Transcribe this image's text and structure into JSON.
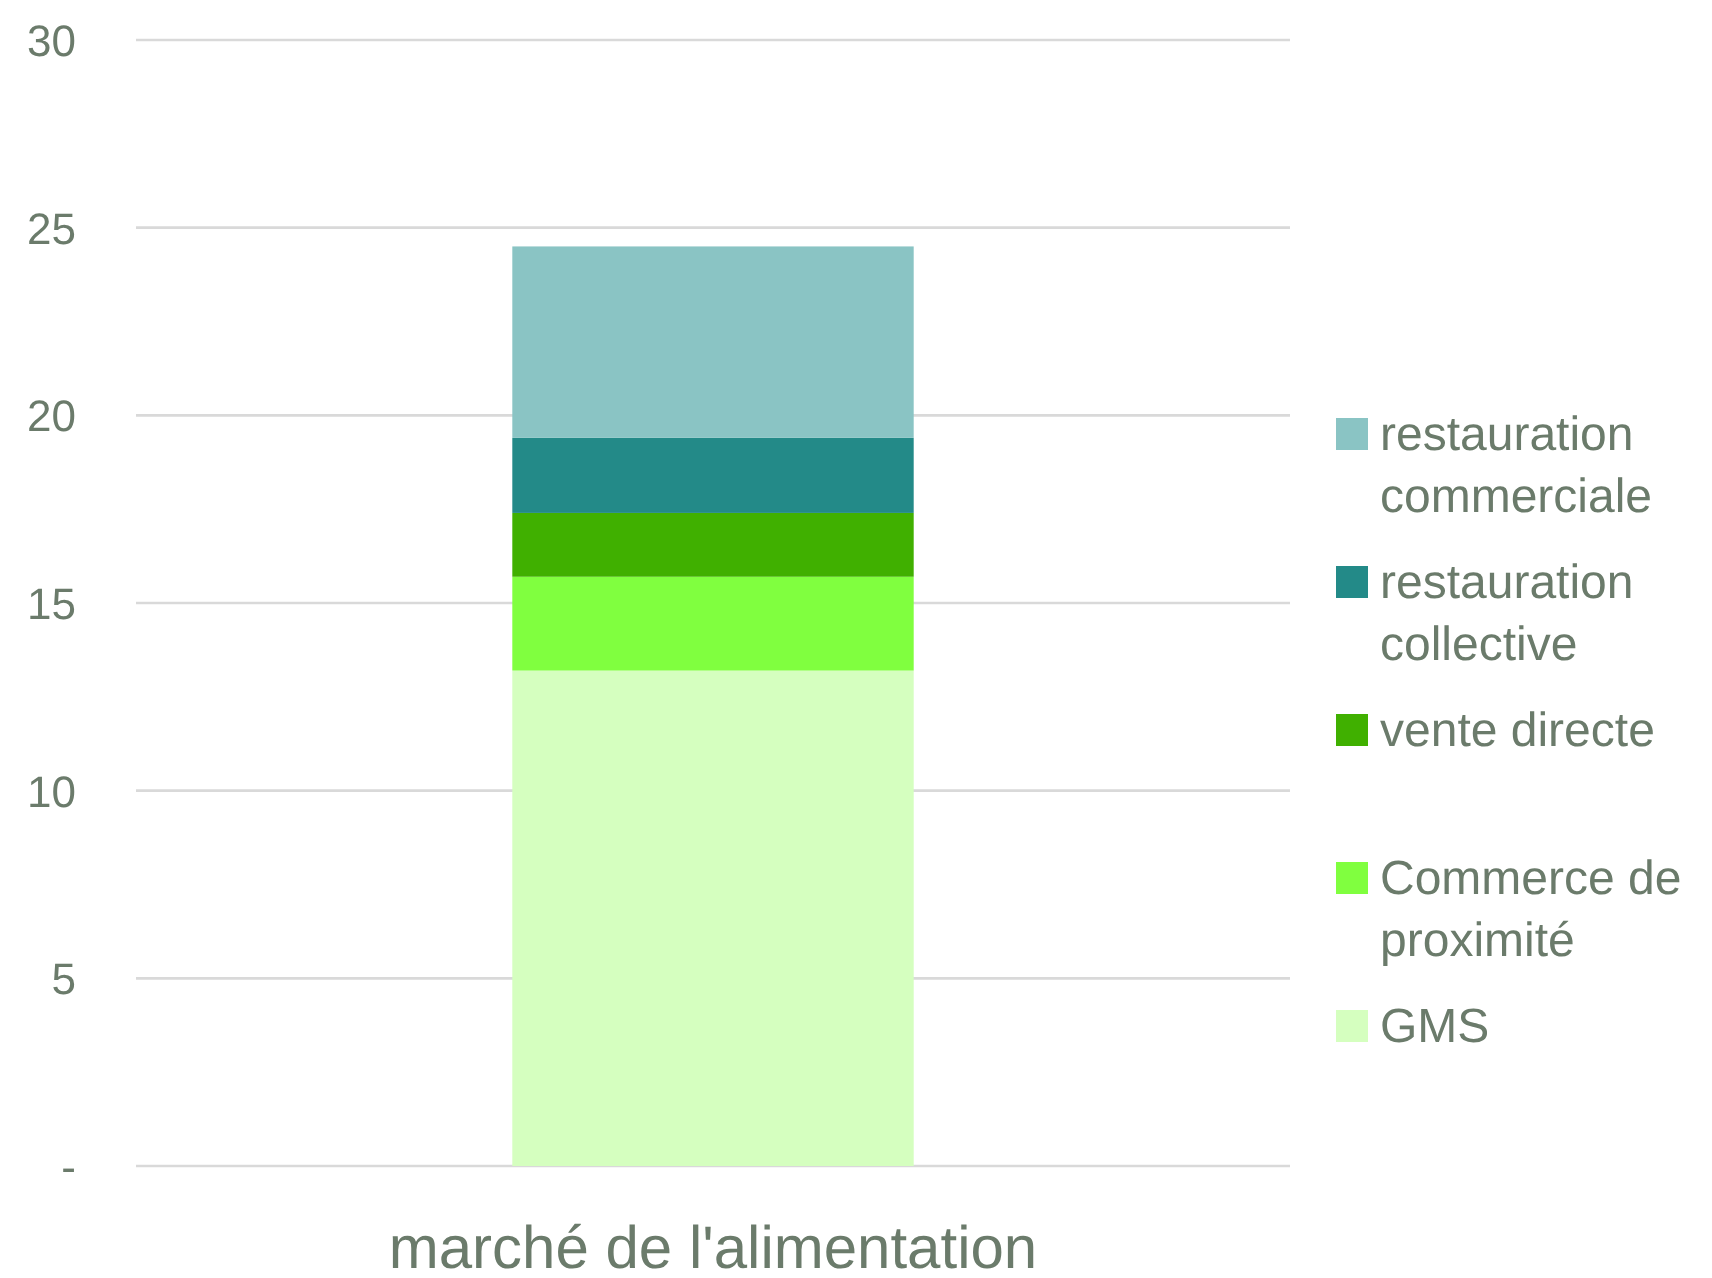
{
  "chart_data": {
    "type": "bar",
    "stacked": true,
    "categories": [
      "marché de l'alimentation"
    ],
    "series": [
      {
        "name": "GMS",
        "color": "#d5ffbf",
        "values": [
          13.2
        ]
      },
      {
        "name": "Commerce de proximité",
        "color": "#80ff3f",
        "values": [
          2.5
        ]
      },
      {
        "name": "vente directe",
        "color": "#40b000",
        "values": [
          1.7
        ]
      },
      {
        "name": "restauration collective",
        "color": "#238a88",
        "values": [
          2.0
        ]
      },
      {
        "name": "restauration commerciale",
        "color": "#8ac4c4",
        "values": [
          5.1
        ]
      }
    ],
    "ylim": [
      0,
      30
    ],
    "yticks": [
      {
        "value": 0,
        "label": "-"
      },
      5,
      10,
      15,
      20,
      25,
      30
    ],
    "grid": "y",
    "legend": "right"
  }
}
